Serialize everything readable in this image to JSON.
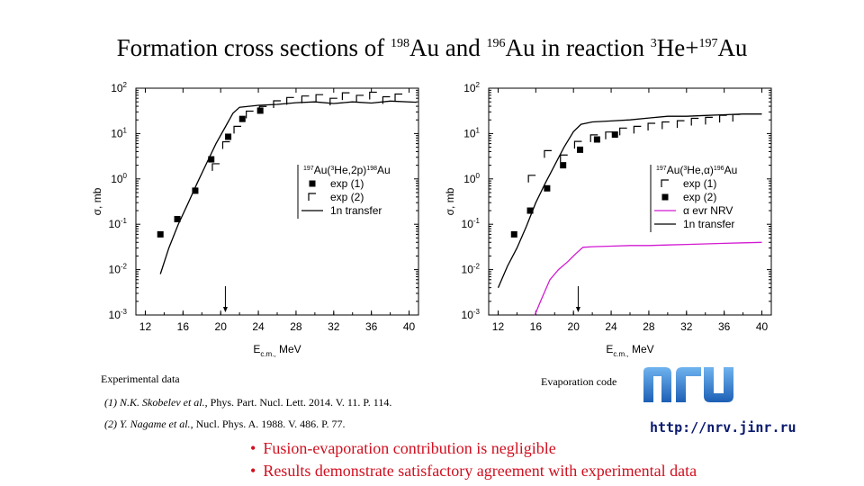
{
  "title": {
    "prefix": "Formation cross sections of ",
    "iso1_mass": "198",
    "iso1": "Au",
    "mid": " and ",
    "iso2_mass": "196",
    "iso2": "Au",
    "mid2": " in reaction ",
    "beam_mass": "3",
    "beam": "He+",
    "target_mass": "197",
    "target": "Au"
  },
  "chart_data": [
    {
      "type": "line",
      "xlabel": "E c.m., MeV",
      "ylabel": "σ, mb",
      "xlim": [
        11,
        41
      ],
      "ylim": [
        0.001,
        100
      ],
      "y_scale": "log",
      "x_ticks": [
        "12",
        "16",
        "20",
        "24",
        "28",
        "32",
        "36",
        "40"
      ],
      "y_ticks": [
        "10-3",
        "10-2",
        "10-1",
        "100",
        "101",
        "102"
      ],
      "legend_title": "197Au(3He,2p)198Au",
      "legend_position": "center-right",
      "legend": [
        "exp (1)",
        "exp (2)",
        "1n transfer"
      ],
      "arrow_x": 20.5,
      "series": [
        {
          "name": "exp (1)",
          "marker": "filled-square",
          "x": [
            13.6,
            15.4,
            17.3,
            19.0,
            20.8,
            22.3,
            24.2
          ],
          "y": [
            0.06,
            0.13,
            0.55,
            2.7,
            8.5,
            21,
            32
          ]
        },
        {
          "name": "exp (2)",
          "marker": "open-corner",
          "x": [
            19.5,
            20.6,
            21.8,
            23.1,
            24.5,
            26.0,
            27.4,
            29.0,
            30.5,
            32.0,
            33.3,
            34.8,
            36.2,
            37.6,
            38.9
          ],
          "y": [
            1.8,
            5.5,
            12,
            26,
            33,
            44,
            52,
            56,
            60,
            50,
            66,
            58,
            68,
            54,
            62
          ]
        },
        {
          "name": "1n transfer",
          "line": "black",
          "x": [
            13.6,
            14.5,
            15.5,
            16.5,
            17.5,
            18.5,
            19.5,
            20.5,
            21.3,
            22.0,
            23,
            24,
            26,
            28,
            30,
            32,
            34,
            36,
            38,
            40.8
          ],
          "y": [
            0.008,
            0.03,
            0.1,
            0.28,
            0.8,
            2.2,
            6,
            14,
            28,
            38,
            40,
            42,
            44,
            48,
            50,
            46,
            50,
            47,
            52,
            49
          ]
        }
      ]
    },
    {
      "type": "line",
      "xlabel": "E c.m., MeV",
      "ylabel": "σ, mb",
      "xlim": [
        11,
        41
      ],
      "ylim": [
        0.001,
        100
      ],
      "y_scale": "log",
      "x_ticks": [
        "12",
        "16",
        "20",
        "24",
        "28",
        "32",
        "36",
        "40"
      ],
      "y_ticks": [
        "10-3",
        "10-2",
        "10-1",
        "100",
        "101",
        "102"
      ],
      "legend_title": "197Au(3He,α)196Au",
      "legend_position": "center-right",
      "legend": [
        "exp (1)",
        "exp (2)",
        "α evr NRV",
        "1n transfer"
      ],
      "arrow_x": 20.5,
      "series": [
        {
          "name": "exp (1)",
          "marker": "open-corner",
          "x": [
            15.6,
            17.3,
            19.0,
            20.5,
            22.2,
            23.8,
            25.3,
            26.8,
            28.3,
            29.8,
            31.4,
            32.9,
            34.4,
            35.9,
            37.3
          ],
          "y": [
            1.0,
            3.5,
            2.8,
            5.6,
            7.8,
            9.0,
            11,
            12,
            14,
            15,
            16,
            18,
            19,
            21,
            22
          ]
        },
        {
          "name": "exp (2)",
          "marker": "filled-square",
          "x": [
            13.7,
            15.4,
            17.2,
            18.9,
            20.7,
            22.5,
            24.4
          ],
          "y": [
            0.06,
            0.2,
            0.62,
            2.0,
            4.4,
            7.4,
            9.5
          ]
        },
        {
          "name": "1n transfer",
          "line": "black",
          "x": [
            12.0,
            13,
            14,
            15,
            16,
            17,
            18,
            19,
            20,
            20.8,
            22,
            24,
            26,
            28,
            30,
            32,
            34,
            36,
            38,
            40
          ],
          "y": [
            0.004,
            0.012,
            0.03,
            0.09,
            0.3,
            0.8,
            2.0,
            5,
            11,
            16,
            18,
            19,
            20,
            22,
            24,
            24,
            25,
            26,
            27,
            27
          ]
        },
        {
          "name": "α evr NRV",
          "line": "magenta",
          "x": [
            15.9,
            16.5,
            17.5,
            18.4,
            19.4,
            20.2,
            21.0,
            22,
            24,
            26,
            28,
            30,
            32,
            34,
            36,
            38,
            40
          ],
          "y": [
            0.001,
            0.002,
            0.006,
            0.01,
            0.015,
            0.022,
            0.031,
            0.032,
            0.033,
            0.034,
            0.034,
            0.035,
            0.036,
            0.037,
            0.038,
            0.039,
            0.04
          ]
        }
      ]
    }
  ],
  "refs": {
    "experimental": "Experimental data",
    "ref1_authors": "(1) N.K. Skobelev et al.",
    "ref1_rest": ", Phys. Part. Nucl. Lett. 2014. V. 11. P. 114.",
    "ref2_authors": "(2) Y. Nagame et al.",
    "ref2_rest": ", Nucl. Phys. A. 1988. V. 486. P. 77.",
    "evaporation": "Evaporation code",
    "url": "http://nrv.jinr.ru",
    "logo_text": "nrv"
  },
  "bullets": [
    "Fusion-evaporation contribution is negligible",
    "Results demonstrate satisfactory agreement with experimental data"
  ],
  "colors": {
    "accent": "#d10f1f",
    "logo": "#1f6fc6",
    "url": "#0a1a6e",
    "evr": "#d21ad2"
  }
}
